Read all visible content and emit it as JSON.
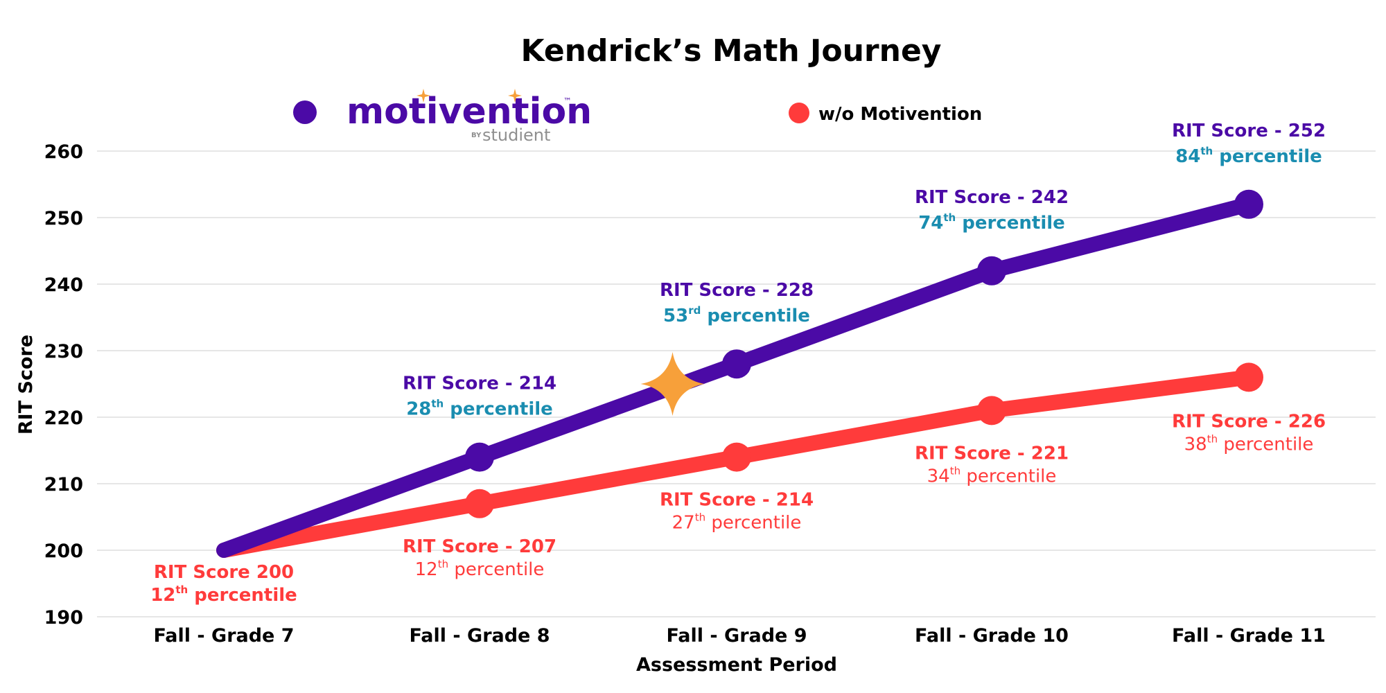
{
  "chart_data": {
    "type": "line",
    "title": "Kendrick’s Math Journey",
    "xlabel": "Assessment Period",
    "ylabel": "RIT Score",
    "categories": [
      "Fall - Grade 7",
      "Fall - Grade 8",
      "Fall - Grade 9",
      "Fall - Grade 10",
      "Fall - Grade 11"
    ],
    "ylim": [
      190,
      260
    ],
    "yticks": [
      190,
      200,
      210,
      220,
      230,
      240,
      250,
      260
    ],
    "grid": true,
    "legend": {
      "placement": "top",
      "items": [
        {
          "series": "with",
          "brand_name": "motivention",
          "brand_trademark": "™",
          "brand_by": "BY",
          "brand_sub": "studient"
        },
        {
          "series": "without",
          "label": "w/o Motivention"
        }
      ]
    },
    "series": [
      {
        "name": "motivention",
        "color": "#4b0aa6",
        "values": [
          200,
          214,
          228,
          242,
          252
        ],
        "labels": [
          null,
          {
            "score": "RIT Score - 214",
            "pct_num": "28",
            "pct_sup": "th",
            "pct_word": "percentile"
          },
          {
            "score": "RIT Score - 228",
            "pct_num": "53",
            "pct_sup": "rd",
            "pct_word": "percentile"
          },
          {
            "score": "RIT Score - 242",
            "pct_num": "74",
            "pct_sup": "th",
            "pct_word": "percentile"
          },
          {
            "score": "RIT Score - 252",
            "pct_num": "84",
            "pct_sup": "th",
            "pct_word": "percentile"
          }
        ]
      },
      {
        "name": "w/o Motivention",
        "color": "#ff3b3b",
        "values": [
          200,
          207,
          214,
          221,
          226
        ],
        "labels": [
          {
            "score": "RIT Score 200",
            "pct_num": "12",
            "pct_sup": "th",
            "pct_word": "percentile"
          },
          {
            "score": "RIT Score - 207",
            "pct_num": "12",
            "pct_sup": "th",
            "pct_word": "percentile"
          },
          {
            "score": "RIT Score - 214",
            "pct_num": "27",
            "pct_sup": "th",
            "pct_word": "percentile"
          },
          {
            "score": "RIT Score - 221",
            "pct_num": "34",
            "pct_sup": "th",
            "pct_word": "percentile"
          },
          {
            "score": "RIT Score - 226",
            "pct_num": "38",
            "pct_sup": "th",
            "pct_word": "percentile"
          }
        ]
      }
    ],
    "annotation": {
      "type": "star",
      "x_between": [
        1,
        2
      ],
      "y": 225,
      "color": "#f7a03a"
    }
  },
  "colors": {
    "purple": "#4b0aa6",
    "red": "#ff3b3b",
    "teal": "#1a8db0",
    "grid": "#dddddd",
    "brand_gray": "#8f8f8f",
    "star": "#f7a03a"
  }
}
